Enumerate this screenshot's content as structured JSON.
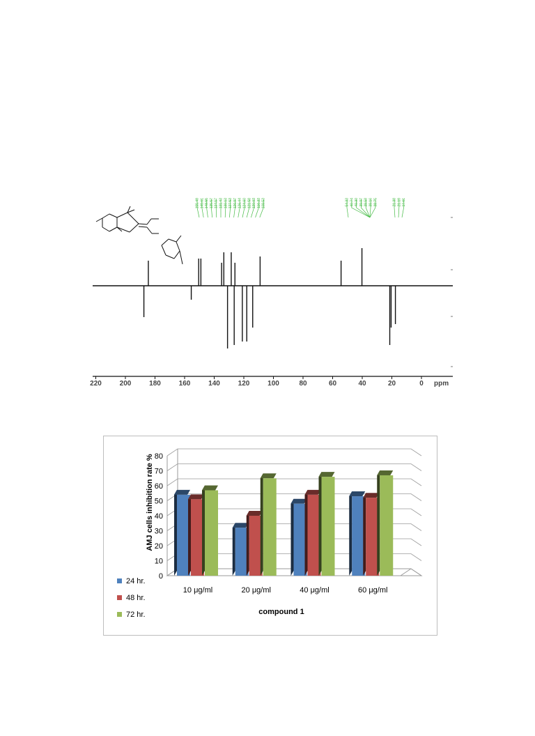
{
  "nmr": {
    "axis_ticks": [
      "220",
      "200",
      "180",
      "160",
      "140",
      "120",
      "100",
      "80",
      "60",
      "40",
      "20",
      "0"
    ],
    "unit": "ppm",
    "left_peak_labels": [
      "155.49",
      "149.61",
      "148.55",
      "135.57",
      "134.57",
      "131.43",
      "130.13",
      "127.53",
      "126.97",
      "126.44",
      "124.60",
      "121.58",
      "120.03",
      "116.23",
      "109.53"
    ],
    "right_peak_labels": [
      "54.33",
      "40.74",
      "40.30",
      "39.97",
      "39.58",
      "39.16",
      "38.75",
      "21.38",
      "21.19",
      "17.61"
    ],
    "up_peaks": [
      {
        "ppm": 184.5,
        "intensity": 0.6
      },
      {
        "ppm": 150.5,
        "intensity": 0.65
      },
      {
        "ppm": 149,
        "intensity": 0.65
      },
      {
        "ppm": 135,
        "intensity": 0.55
      },
      {
        "ppm": 133.5,
        "intensity": 0.8
      },
      {
        "ppm": 128.5,
        "intensity": 0.8
      },
      {
        "ppm": 126,
        "intensity": 0.55
      },
      {
        "ppm": 109,
        "intensity": 0.7
      },
      {
        "ppm": 54.3,
        "intensity": 0.6
      },
      {
        "ppm": 40.2,
        "intensity": 0.9
      }
    ],
    "down_peaks": [
      {
        "ppm": 187.5,
        "intensity": 0.45
      },
      {
        "ppm": 155.5,
        "intensity": 0.2
      },
      {
        "ppm": 131,
        "intensity": 0.9
      },
      {
        "ppm": 126.5,
        "intensity": 0.85
      },
      {
        "ppm": 121,
        "intensity": 0.8
      },
      {
        "ppm": 118,
        "intensity": 0.8
      },
      {
        "ppm": 114,
        "intensity": 0.6
      },
      {
        "ppm": 21.4,
        "intensity": 0.85
      },
      {
        "ppm": 20.5,
        "intensity": 0.6
      },
      {
        "ppm": 17.6,
        "intensity": 0.55
      }
    ]
  },
  "chart_data": {
    "type": "bar",
    "categories": [
      "10 μg/ml",
      "20 μg/ml",
      "40 μg/ml",
      "60 μg/ml"
    ],
    "series": [
      {
        "name": "24 hr.",
        "values": [
          54,
          32,
          48,
          53
        ]
      },
      {
        "name": "48 hr.",
        "values": [
          51,
          40,
          54,
          52
        ]
      },
      {
        "name": "72 hr.",
        "values": [
          57,
          65,
          66,
          67
        ]
      }
    ],
    "colors": [
      "#4f81bd",
      "#c0504d",
      "#9bbb59"
    ],
    "xlabel": "compound 1",
    "ylabel": "AMJ cells inhibition rate %",
    "ylim": [
      0,
      80
    ],
    "yticks": [
      "0",
      "10",
      "20",
      "30",
      "40",
      "50",
      "60",
      "70",
      "80"
    ],
    "grid": true,
    "legend_position": "bottom-left"
  }
}
